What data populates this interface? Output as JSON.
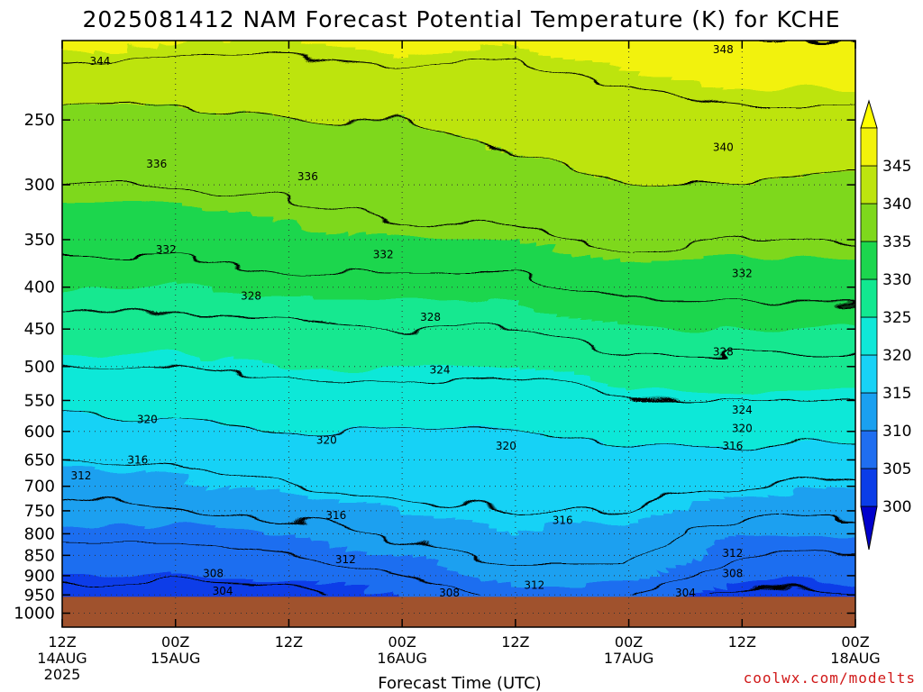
{
  "chart_data": {
    "type": "heatmap",
    "title": "2025081412 NAM Forecast Potential Temperature (K) for KCHE",
    "xlabel": "Forecast Time (UTC)",
    "ylabel": "",
    "credit": "coolwx.com/modelts",
    "x_ticks": [
      {
        "hours": 0,
        "label": "12Z",
        "sub": "14AUG",
        "sub2": "2025"
      },
      {
        "hours": 12,
        "label": "00Z",
        "sub": "15AUG",
        "sub2": ""
      },
      {
        "hours": 24,
        "label": "12Z",
        "sub": "",
        "sub2": ""
      },
      {
        "hours": 36,
        "label": "00Z",
        "sub": "16AUG",
        "sub2": ""
      },
      {
        "hours": 48,
        "label": "12Z",
        "sub": "",
        "sub2": ""
      },
      {
        "hours": 60,
        "label": "00Z",
        "sub": "17AUG",
        "sub2": ""
      },
      {
        "hours": 72,
        "label": "12Z",
        "sub": "",
        "sub2": ""
      },
      {
        "hours": 84,
        "label": "00Z",
        "sub": "18AUG",
        "sub2": ""
      }
    ],
    "xlim_hours": [
      0,
      84
    ],
    "y_ticks": [
      250,
      300,
      350,
      400,
      450,
      500,
      550,
      600,
      650,
      700,
      750,
      800,
      850,
      900,
      950,
      1000
    ],
    "y_scale": "log",
    "ylim_hpa": [
      200,
      1040
    ],
    "ground_level_hpa": 955,
    "grid": true,
    "colorbar": {
      "ticks": [
        300,
        305,
        310,
        315,
        320,
        325,
        330,
        335,
        340,
        345
      ],
      "bands": [
        {
          "lo": 300,
          "hi": 305,
          "color": "#0a3de8"
        },
        {
          "lo": 305,
          "hi": 310,
          "color": "#1f6ef0"
        },
        {
          "lo": 310,
          "hi": 315,
          "color": "#1aa0f0"
        },
        {
          "lo": 315,
          "hi": 320,
          "color": "#18d2f6"
        },
        {
          "lo": 320,
          "hi": 325,
          "color": "#10e8d8"
        },
        {
          "lo": 325,
          "hi": 330,
          "color": "#12e890"
        },
        {
          "lo": 330,
          "hi": 335,
          "color": "#1cd64e"
        },
        {
          "lo": 335,
          "hi": 340,
          "color": "#7ed81c"
        },
        {
          "lo": 340,
          "hi": 345,
          "color": "#bde40e"
        },
        {
          "lo": 345,
          "hi": 350,
          "color": "#f2f20a"
        }
      ],
      "under_color": "#0000cc",
      "over_color": "#ffff00",
      "placement": "right"
    },
    "ground_color": "#a0522d",
    "contour_interval_k": 4,
    "contour_labels": [
      {
        "value": "344",
        "hours": 4,
        "hpa": 212
      },
      {
        "value": "348",
        "hours": 70,
        "hpa": 205
      },
      {
        "value": "340",
        "hours": 70,
        "hpa": 270
      },
      {
        "value": "336",
        "hours": 10,
        "hpa": 283
      },
      {
        "value": "336",
        "hours": 26,
        "hpa": 293
      },
      {
        "value": "332",
        "hours": 11,
        "hpa": 360
      },
      {
        "value": "332",
        "hours": 34,
        "hpa": 365
      },
      {
        "value": "332",
        "hours": 72,
        "hpa": 385
      },
      {
        "value": "328",
        "hours": 20,
        "hpa": 410
      },
      {
        "value": "328",
        "hours": 39,
        "hpa": 435
      },
      {
        "value": "328",
        "hours": 70,
        "hpa": 480
      },
      {
        "value": "324",
        "hours": 40,
        "hpa": 505
      },
      {
        "value": "324",
        "hours": 72,
        "hpa": 565
      },
      {
        "value": "320",
        "hours": 9,
        "hpa": 580
      },
      {
        "value": "320",
        "hours": 28,
        "hpa": 615
      },
      {
        "value": "320",
        "hours": 47,
        "hpa": 625
      },
      {
        "value": "320",
        "hours": 72,
        "hpa": 595
      },
      {
        "value": "316",
        "hours": 8,
        "hpa": 650
      },
      {
        "value": "316",
        "hours": 29,
        "hpa": 760
      },
      {
        "value": "316",
        "hours": 53,
        "hpa": 770
      },
      {
        "value": "316",
        "hours": 71,
        "hpa": 625
      },
      {
        "value": "312",
        "hours": 2,
        "hpa": 680
      },
      {
        "value": "312",
        "hours": 30,
        "hpa": 860
      },
      {
        "value": "312",
        "hours": 50,
        "hpa": 925
      },
      {
        "value": "312",
        "hours": 71,
        "hpa": 845
      },
      {
        "value": "308",
        "hours": 16,
        "hpa": 895
      },
      {
        "value": "308",
        "hours": 41,
        "hpa": 945
      },
      {
        "value": "308",
        "hours": 71,
        "hpa": 895
      },
      {
        "value": "304",
        "hours": 17,
        "hpa": 940
      },
      {
        "value": "304",
        "hours": 66,
        "hpa": 945
      }
    ],
    "profile_pressure_hpa": [
      200,
      250,
      300,
      350,
      400,
      450,
      500,
      550,
      600,
      650,
      700,
      750,
      800,
      850,
      900,
      950
    ],
    "profile_hours": [
      0,
      12,
      24,
      36,
      48,
      60,
      72,
      84
    ],
    "theta_k_by_time": [
      [
        346,
        339,
        336,
        333,
        330,
        327,
        324,
        321,
        319,
        316,
        313,
        311,
        309,
        307,
        305,
        302
      ],
      [
        345,
        339,
        336,
        333,
        330,
        327,
        324,
        322,
        319,
        317,
        314,
        312,
        309,
        307,
        305,
        302
      ],
      [
        345,
        340,
        337,
        334,
        331,
        327,
        325,
        322,
        320,
        318,
        316,
        313,
        310,
        308,
        306,
        302
      ],
      [
        346,
        340,
        338,
        335,
        331,
        328,
        325,
        323,
        320,
        318,
        317,
        315,
        313,
        310,
        308,
        305
      ],
      [
        345,
        341,
        339,
        335,
        331,
        328,
        325,
        322,
        320,
        318,
        317,
        316,
        315,
        313,
        311,
        309
      ],
      [
        347,
        342,
        340,
        337,
        333,
        330,
        327,
        324,
        321,
        319,
        317,
        316,
        314,
        313,
        311,
        308
      ],
      [
        348,
        343,
        340,
        336,
        333,
        330,
        327,
        324,
        321,
        319,
        316,
        313,
        310,
        308,
        306,
        302
      ],
      [
        348,
        343,
        339,
        336,
        333,
        330,
        327,
        324,
        321,
        318,
        315,
        313,
        310,
        308,
        306,
        303
      ]
    ]
  }
}
